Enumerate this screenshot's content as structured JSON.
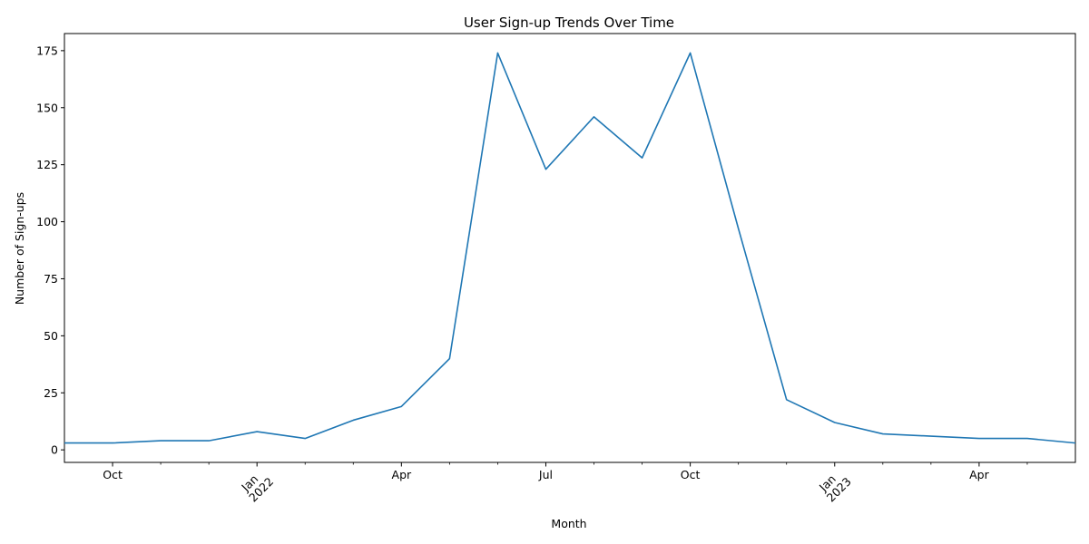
{
  "chart_data": {
    "type": "line",
    "title": "User Sign-up Trends Over Time",
    "xlabel": "Month",
    "ylabel": "Number of Sign-ups",
    "series": [
      {
        "name": "Sign-ups",
        "color": "#1f77b4",
        "x": [
          "2021-09",
          "2021-10",
          "2021-11",
          "2021-12",
          "2022-01",
          "2022-02",
          "2022-03",
          "2022-04",
          "2022-05",
          "2022-06",
          "2022-07",
          "2022-08",
          "2022-09",
          "2022-10",
          "2022-11",
          "2022-12",
          "2023-01",
          "2023-02",
          "2023-03",
          "2023-04",
          "2023-05",
          "2023-06"
        ],
        "values": [
          3,
          3,
          4,
          4,
          8,
          5,
          13,
          19,
          40,
          174,
          123,
          146,
          128,
          174,
          97,
          22,
          12,
          7,
          6,
          5,
          5,
          3
        ]
      }
    ],
    "xlim_index": [
      0,
      21
    ],
    "ylim": [
      -5.5,
      182.5
    ],
    "yticks": [
      0,
      25,
      50,
      75,
      100,
      125,
      150,
      175
    ],
    "xticks_major": [
      {
        "index": 1,
        "label": "Oct",
        "rotated": false
      },
      {
        "index": 4,
        "label": "Jan",
        "sublabel": "2022",
        "rotated": true
      },
      {
        "index": 7,
        "label": "Apr",
        "rotated": false
      },
      {
        "index": 10,
        "label": "Jul",
        "rotated": false
      },
      {
        "index": 13,
        "label": "Oct",
        "rotated": false
      },
      {
        "index": 16,
        "label": "Jan",
        "sublabel": "2023",
        "rotated": true
      },
      {
        "index": 19,
        "label": "Apr",
        "rotated": false
      }
    ],
    "xticks_minor": [
      2,
      3,
      5,
      6,
      8,
      9,
      11,
      12,
      14,
      15,
      17,
      18,
      20
    ],
    "grid": false,
    "legend": "none"
  }
}
